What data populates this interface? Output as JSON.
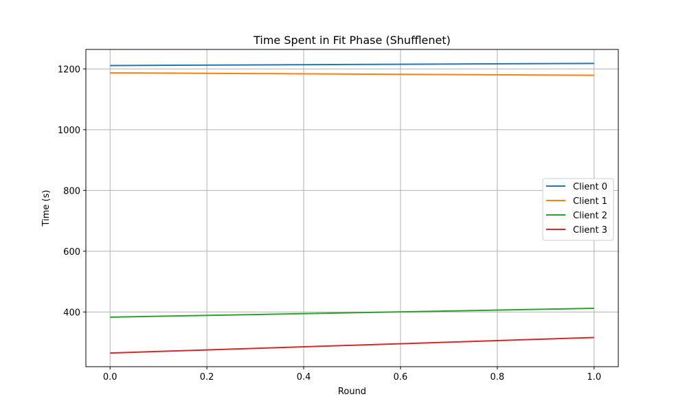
{
  "chart_data": {
    "type": "line",
    "title": "Time Spent in Fit Phase (Shufflenet)",
    "xlabel": "Round",
    "ylabel": "Time (s)",
    "xlim": [
      -0.05,
      1.05
    ],
    "ylim": [
      220,
      1264
    ],
    "xticks": [
      0.0,
      0.2,
      0.4,
      0.6,
      0.8,
      1.0
    ],
    "xtick_labels": [
      "0.0",
      "0.2",
      "0.4",
      "0.6",
      "0.8",
      "1.0"
    ],
    "yticks": [
      400,
      600,
      800,
      1000,
      1200
    ],
    "ytick_labels": [
      "400",
      "600",
      "800",
      "1000",
      "1200"
    ],
    "grid": true,
    "legend_position": "center-right",
    "x": [
      0.0,
      1.0
    ],
    "series": [
      {
        "name": "Client 0",
        "color": "#1f77b4",
        "values": [
          1211,
          1218
        ]
      },
      {
        "name": "Client 1",
        "color": "#ff7f0e",
        "values": [
          1187,
          1179
        ]
      },
      {
        "name": "Client 2",
        "color": "#2ca02c",
        "values": [
          383,
          412
        ]
      },
      {
        "name": "Client 3",
        "color": "#d62728",
        "values": [
          265,
          316
        ]
      }
    ]
  }
}
